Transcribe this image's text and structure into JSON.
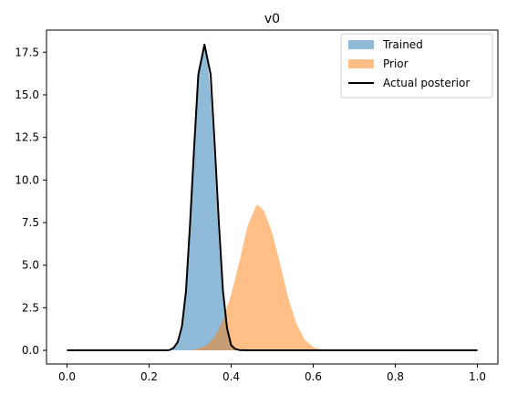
{
  "chart_data": {
    "type": "area",
    "title": "v0",
    "xlabel": "",
    "ylabel": "",
    "xlim": [
      -0.05,
      1.05
    ],
    "ylim": [
      -0.8,
      18.8
    ],
    "xticks": [
      0.0,
      0.2,
      0.4,
      0.6,
      0.8,
      1.0
    ],
    "xtick_labels": [
      "0.0",
      "0.2",
      "0.4",
      "0.6",
      "0.8",
      "1.0"
    ],
    "yticks": [
      0.0,
      2.5,
      5.0,
      7.5,
      10.0,
      12.5,
      15.0,
      17.5
    ],
    "ytick_labels": [
      "0.0",
      "2.5",
      "5.0",
      "7.5",
      "10.0",
      "12.5",
      "15.0",
      "17.5"
    ],
    "grid": false,
    "legend_position": "top-right",
    "series": [
      {
        "name": "Trained",
        "kind": "filled-area",
        "color": "#1f77b4",
        "alpha": 0.5,
        "x": [
          0.0,
          0.24,
          0.26,
          0.27,
          0.28,
          0.29,
          0.3,
          0.31,
          0.32,
          0.33,
          0.335,
          0.34,
          0.35,
          0.36,
          0.37,
          0.38,
          0.39,
          0.4,
          0.42,
          1.0
        ],
        "y": [
          0.0,
          0.0,
          0.1,
          0.4,
          1.2,
          3.3,
          7.0,
          11.8,
          16.2,
          17.7,
          17.95,
          17.6,
          15.0,
          10.8,
          6.4,
          3.1,
          1.2,
          0.35,
          0.0,
          0.0
        ]
      },
      {
        "name": "Prior",
        "kind": "filled-area",
        "color": "#ff7f0e",
        "alpha": 0.5,
        "x": [
          0.0,
          0.3,
          0.32,
          0.34,
          0.36,
          0.38,
          0.4,
          0.42,
          0.44,
          0.46,
          0.465,
          0.48,
          0.5,
          0.52,
          0.54,
          0.56,
          0.58,
          0.6,
          0.62,
          0.64,
          1.0
        ],
        "y": [
          0.0,
          0.0,
          0.1,
          0.3,
          0.8,
          1.8,
          3.3,
          5.2,
          7.3,
          8.45,
          8.55,
          8.2,
          6.9,
          5.0,
          3.0,
          1.5,
          0.6,
          0.2,
          0.05,
          0.0,
          0.0
        ]
      },
      {
        "name": "Actual posterior",
        "kind": "line",
        "color": "#000000",
        "x": [
          0.0,
          0.24,
          0.25,
          0.26,
          0.27,
          0.28,
          0.29,
          0.3,
          0.31,
          0.32,
          0.335,
          0.35,
          0.36,
          0.37,
          0.38,
          0.39,
          0.4,
          0.41,
          0.42,
          0.44,
          1.0
        ],
        "y": [
          0.0,
          0.0,
          0.02,
          0.15,
          0.5,
          1.4,
          3.5,
          7.5,
          12.0,
          16.2,
          17.95,
          16.2,
          12.0,
          7.5,
          3.5,
          1.3,
          0.3,
          0.08,
          0.02,
          0.0,
          0.0
        ]
      }
    ]
  }
}
